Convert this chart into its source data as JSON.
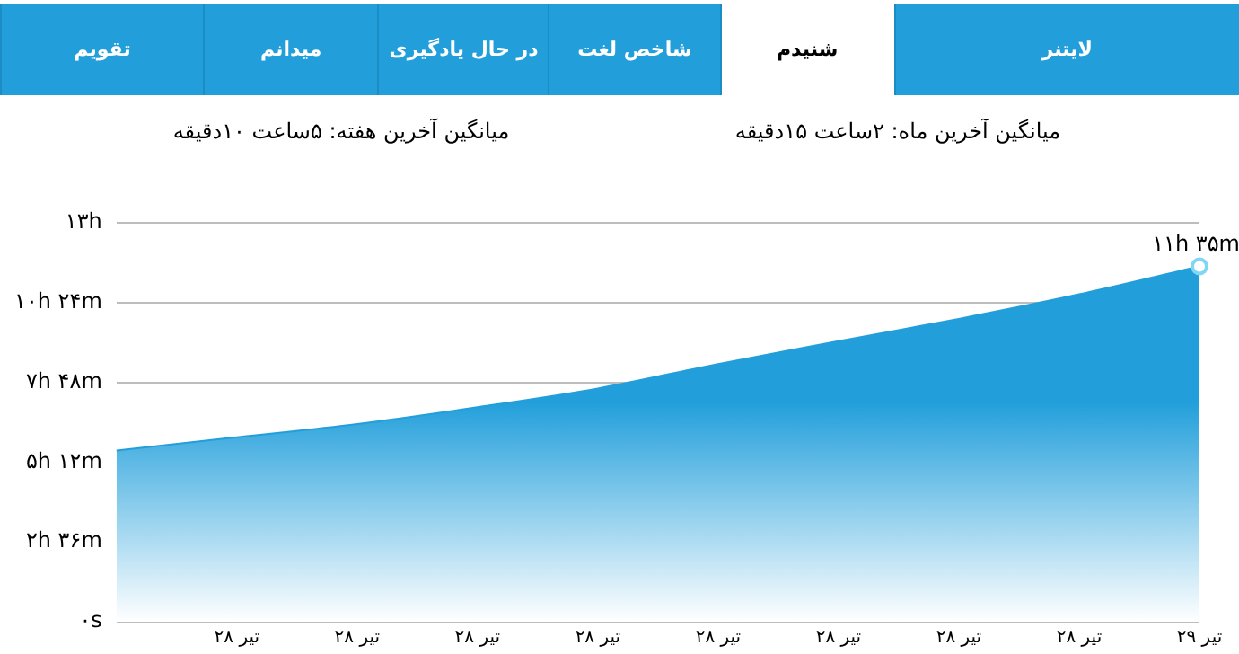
{
  "chart_data": {
    "type": "area",
    "annotations": [
      "لایتنر",
      "شنیدم",
      "شاخص لغت",
      "در حال یادگیری",
      "میدانم",
      "تقویم",
      "میانگین آخرین ماه: ۲ساعت  ۱۵دقیقه",
      "میانگین آخرین هفته: ۵ساعت  ۱۰دقیقه",
      {
        "text": "۱۱h ۳۵m",
        "x": "۲۹ تیر",
        "y": 11.58
      }
    ],
    "categories": [
      null,
      "۲۸ تیر",
      "۲۸ تیر",
      "۲۸ تیر",
      "۲۸ تیر",
      "۲۸ تیر",
      "۲۸ تیر",
      "۲۸ تیر",
      "۲۸ تیر",
      "۲۹ تیر"
    ],
    "series": [
      {
        "color": "#229fdb",
        "values": [
          5.58,
          6.01,
          6.44,
          6.99,
          7.6,
          8.4,
          9.14,
          9.87,
          10.67,
          11.58
        ]
      }
    ],
    "ylim": [
      0,
      13
    ],
    "yticks": [
      {
        "value": 0,
        "label": "۰s"
      },
      {
        "value": 2.6,
        "label": "۲h ۳۶m"
      },
      {
        "value": 5.2,
        "label": "۵h ۱۲m"
      },
      {
        "value": 7.8,
        "label": "۷h ۴۸m"
      },
      {
        "value": 10.4,
        "label": "۱۰h ۲۴m"
      },
      {
        "value": 13,
        "label": "۱۳h"
      }
    ],
    "grid": "y",
    "legend": false
  }
}
